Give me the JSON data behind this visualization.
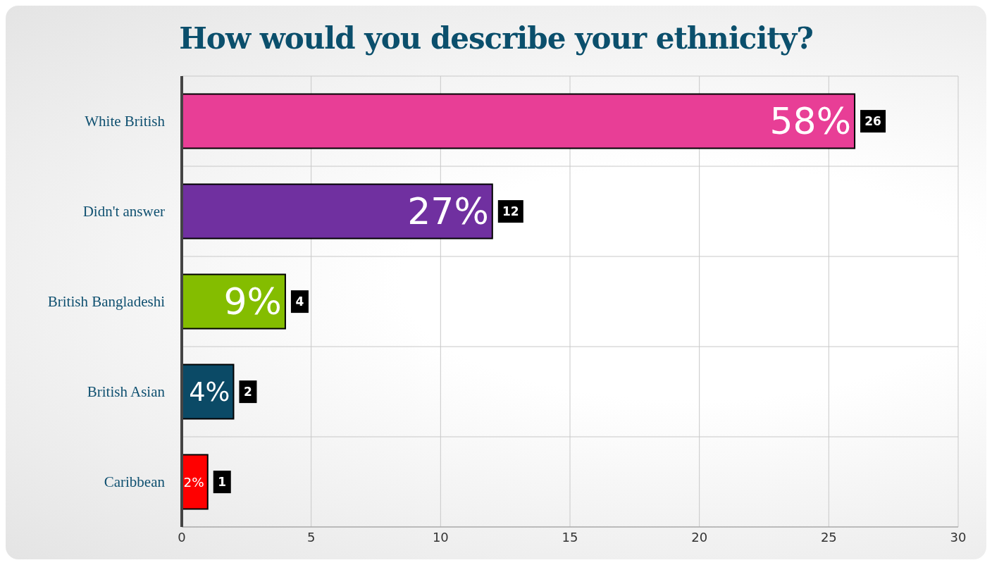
{
  "chart_data": {
    "type": "bar",
    "orientation": "horizontal",
    "title": "How would you describe your ethnicity?",
    "categories": [
      "White British",
      "Didn't answer",
      "British Bangladeshi",
      "British Asian",
      "Caribbean"
    ],
    "values": [
      26,
      12,
      4,
      2,
      1
    ],
    "colors": [
      "#e83e96",
      "#7030a0",
      "#84bd00",
      "#0b4a66",
      "#ff0000"
    ],
    "value_labels": [
      "26",
      "12",
      "4",
      "2",
      "1"
    ],
    "annotations": [
      {
        "text": "58%",
        "x": 26,
        "y": "White British"
      },
      {
        "text": "27%",
        "x": 12,
        "y": "Didn't answer"
      },
      {
        "text": "9%",
        "x": 4,
        "y": "British Bangladeshi"
      },
      {
        "text": "4%",
        "x": 2,
        "y": "British Asian"
      },
      {
        "text": "2%",
        "x": 1,
        "y": "Caribbean"
      }
    ],
    "xlim": [
      0,
      30
    ],
    "xticks": [
      0,
      5,
      10,
      15,
      20,
      25,
      30
    ],
    "grid": true
  }
}
